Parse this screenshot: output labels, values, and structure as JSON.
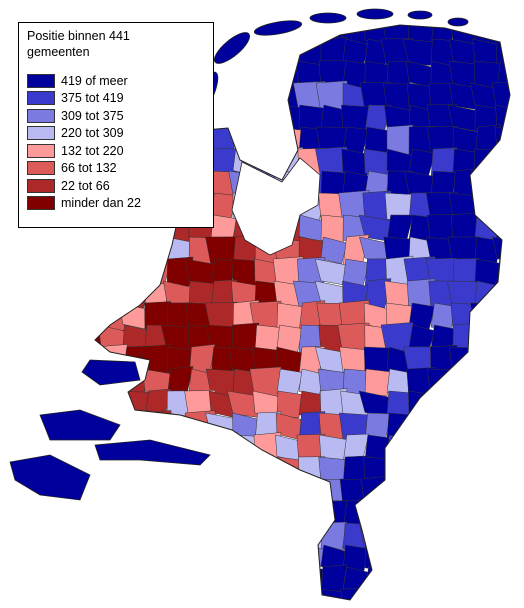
{
  "legend": {
    "title": "Positie binnen 441 gemeenten",
    "items": [
      {
        "label": "419 of meer",
        "color": "#00009c"
      },
      {
        "label": "375 tot 419",
        "color": "#3a3acc"
      },
      {
        "label": "309 tot 375",
        "color": "#7a7ae0"
      },
      {
        "label": "220 tot 309",
        "color": "#babaf2"
      },
      {
        "label": "132 tot 220",
        "color": "#ff9a9a"
      },
      {
        "label": "66 tot 132",
        "color": "#dc5a5a"
      },
      {
        "label": "22 tot 66",
        "color": "#ad2828"
      },
      {
        "label": "minder dan 22",
        "color": "#800000"
      }
    ]
  }
}
